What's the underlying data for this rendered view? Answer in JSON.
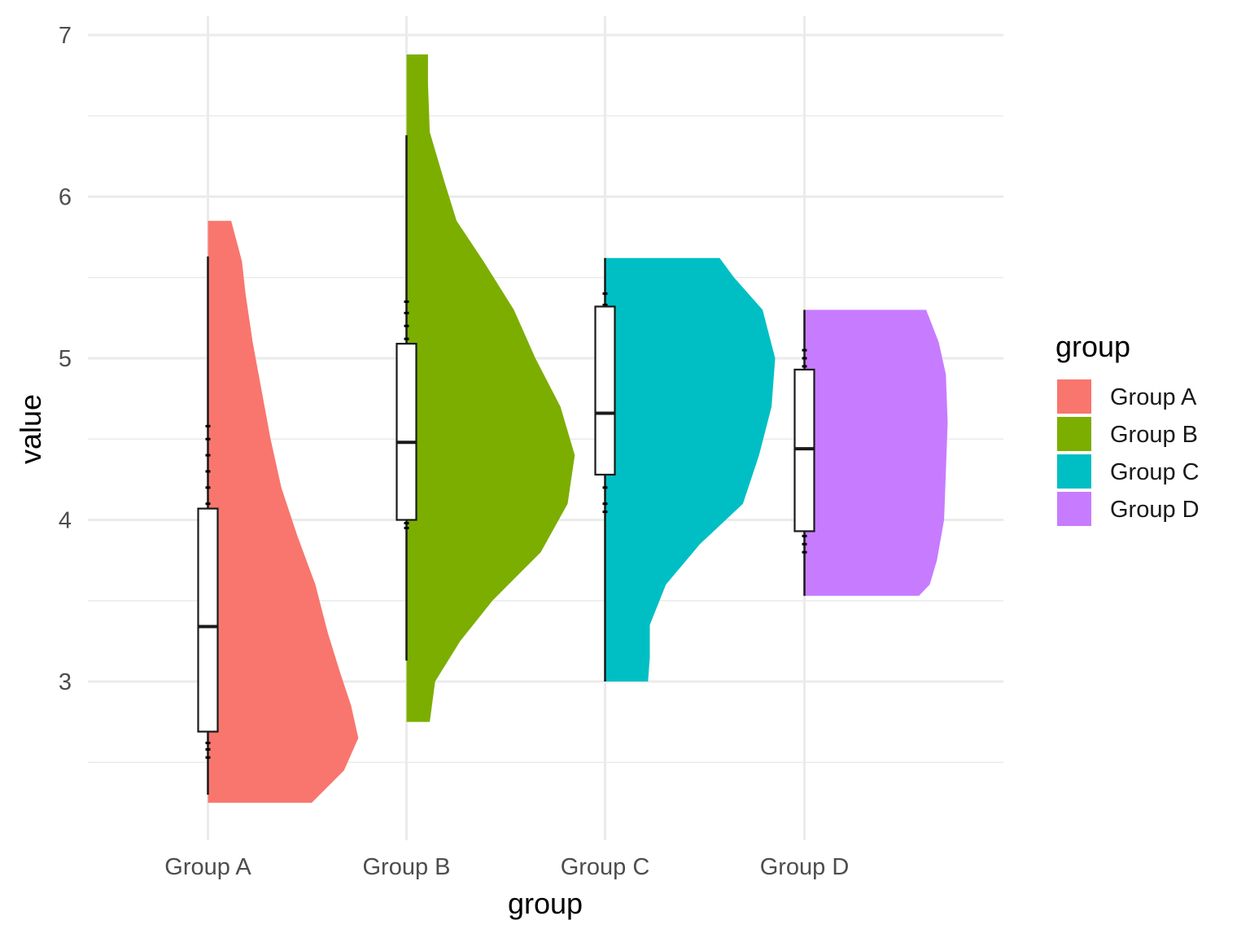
{
  "chart_data": {
    "type": "half-violin with boxplot",
    "xlabel": "group",
    "ylabel": "value",
    "ylim": [
      2.1,
      7.05
    ],
    "y_ticks": [
      3,
      4,
      5,
      6,
      7
    ],
    "y_tick_labels": [
      "3",
      "4",
      "5",
      "6",
      "7"
    ],
    "grid": true,
    "legend": {
      "title": "group",
      "placement": "right"
    },
    "categories": [
      "Group A",
      "Group B",
      "Group C",
      "Group D"
    ],
    "series": [
      {
        "name": "Group A",
        "color": "#F8766D",
        "violin_range": [
          2.25,
          5.85
        ],
        "box": {
          "whisker_low": 2.3,
          "q1": 2.69,
          "median": 3.34,
          "q3": 4.07,
          "whisker_high": 5.63
        },
        "points": [
          2.53,
          2.58,
          2.62,
          4.1,
          4.2,
          4.3,
          4.4,
          4.5,
          4.58
        ],
        "density": [
          [
            2.25,
            0.58
          ],
          [
            2.45,
            0.76
          ],
          [
            2.65,
            0.84
          ],
          [
            2.85,
            0.8
          ],
          [
            3.05,
            0.74
          ],
          [
            3.3,
            0.67
          ],
          [
            3.6,
            0.6
          ],
          [
            3.9,
            0.5
          ],
          [
            4.2,
            0.41
          ],
          [
            4.5,
            0.35
          ],
          [
            4.8,
            0.3
          ],
          [
            5.1,
            0.25
          ],
          [
            5.4,
            0.21
          ],
          [
            5.6,
            0.19
          ],
          [
            5.85,
            0.13
          ]
        ]
      },
      {
        "name": "Group B",
        "color": "#7CAE00",
        "violin_range": [
          2.75,
          6.88
        ],
        "box": {
          "whisker_low": 3.13,
          "q1": 4.0,
          "median": 4.48,
          "q3": 5.09,
          "whisker_high": 6.38
        },
        "points": [
          3.95,
          3.98,
          5.12,
          5.2,
          5.28,
          5.35
        ],
        "density": [
          [
            2.75,
            0.13
          ],
          [
            3.0,
            0.16
          ],
          [
            3.25,
            0.3
          ],
          [
            3.5,
            0.48
          ],
          [
            3.8,
            0.75
          ],
          [
            4.1,
            0.9
          ],
          [
            4.4,
            0.94
          ],
          [
            4.7,
            0.86
          ],
          [
            5.0,
            0.72
          ],
          [
            5.3,
            0.6
          ],
          [
            5.6,
            0.43
          ],
          [
            5.85,
            0.28
          ],
          [
            6.1,
            0.21
          ],
          [
            6.4,
            0.13
          ],
          [
            6.7,
            0.12
          ],
          [
            6.88,
            0.12
          ]
        ]
      },
      {
        "name": "Group C",
        "color": "#00BFC4",
        "violin_range": [
          3.0,
          5.62
        ],
        "box": {
          "whisker_low": 3.0,
          "q1": 4.28,
          "median": 4.66,
          "q3": 5.32,
          "whisker_high": 5.62
        },
        "points": [
          4.05,
          4.1,
          4.2,
          5.33,
          5.4
        ],
        "density": [
          [
            3.0,
            0.24
          ],
          [
            3.15,
            0.25
          ],
          [
            3.35,
            0.25
          ],
          [
            3.6,
            0.34
          ],
          [
            3.85,
            0.53
          ],
          [
            4.1,
            0.77
          ],
          [
            4.4,
            0.86
          ],
          [
            4.7,
            0.93
          ],
          [
            5.0,
            0.95
          ],
          [
            5.3,
            0.88
          ],
          [
            5.5,
            0.72
          ],
          [
            5.62,
            0.64
          ]
        ]
      },
      {
        "name": "Group D",
        "color": "#C77CFF",
        "violin_range": [
          3.53,
          5.3
        ],
        "box": {
          "whisker_low": 3.53,
          "q1": 3.93,
          "median": 4.44,
          "q3": 4.93,
          "whisker_high": 5.3
        },
        "points": [
          3.8,
          3.85,
          3.9,
          4.95,
          5.0,
          5.05
        ],
        "density": [
          [
            3.53,
            0.64
          ],
          [
            3.6,
            0.7
          ],
          [
            3.75,
            0.74
          ],
          [
            4.0,
            0.78
          ],
          [
            4.3,
            0.79
          ],
          [
            4.6,
            0.8
          ],
          [
            4.9,
            0.79
          ],
          [
            5.1,
            0.75
          ],
          [
            5.3,
            0.68
          ]
        ]
      }
    ]
  }
}
